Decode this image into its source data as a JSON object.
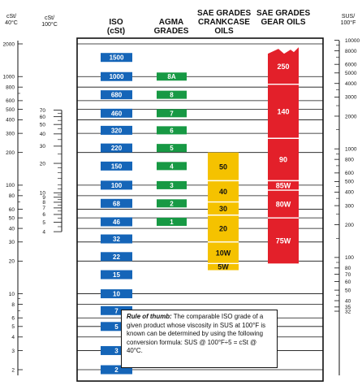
{
  "headers": {
    "cst40": [
      "cSt/",
      "40°C"
    ],
    "cst100": [
      "cSt/",
      "100°C"
    ],
    "iso": [
      "ISO",
      "(cSt)"
    ],
    "agma": [
      "AGMA",
      "GRADES"
    ],
    "crankcase": [
      "SAE GRADES",
      "CRANKCASE",
      "OILS"
    ],
    "gear": [
      "SAE GRADES",
      "GEAR OILS"
    ],
    "sus": [
      "SUS/",
      "100°F"
    ]
  },
  "colors": {
    "iso": "#1565b8",
    "agma": "#179944",
    "crankcase": "#f5c200",
    "gear": "#e3202a",
    "line": "#111111"
  },
  "note": {
    "title": "Rule of thumb:",
    "body": " The comparable ISO grade of a given product whose viscosity in SUS at 100°F is known can be determined by using the following conversion formula: SUS @ 100°F÷5 = cSt @ 40°C."
  },
  "chart_data": {
    "type": "bar",
    "title": "",
    "scale": "log",
    "ylim_cst40": [
      1.8,
      2000
    ],
    "axes": {
      "cst40_ticks": [
        "2000",
        "1000",
        "800",
        "600",
        "500",
        "400",
        "300",
        "200",
        "100",
        "80",
        "60",
        "50",
        "40",
        "30",
        "20",
        "10",
        "8",
        "6",
        "5",
        "4",
        "3",
        "2"
      ],
      "cst100_ticks": [
        "70",
        "60",
        "50",
        "40",
        "30",
        "20",
        "10",
        "9",
        "8",
        "7",
        "6",
        "5",
        "4"
      ],
      "sus_ticks": [
        "10000",
        "8000",
        "6000",
        "5000",
        "4000",
        "3000",
        "2000",
        "1000",
        "800",
        "600",
        "500",
        "400",
        "300",
        "200",
        "100",
        "80",
        "70",
        "60",
        "50",
        "40",
        "35",
        "32"
      ]
    },
    "iso_grades": [
      "1500",
      "1000",
      "680",
      "460",
      "320",
      "220",
      "150",
      "100",
      "68",
      "46",
      "32",
      "22",
      "15",
      "10",
      "7",
      "5",
      "3",
      "2"
    ],
    "agma_grades": [
      "8A",
      "8",
      "7",
      "6",
      "5",
      "4",
      "3",
      "2",
      "1"
    ],
    "agma_cst40": [
      1000,
      680,
      460,
      320,
      220,
      150,
      100,
      68,
      46
    ],
    "crankcase_grades": [
      {
        "label": "50",
        "from": 110,
        "to": 200
      },
      {
        "label": "40",
        "from": 70,
        "to": 110
      },
      {
        "label": "30",
        "from": 53,
        "to": 70
      },
      {
        "label": "20",
        "from": 30,
        "to": 53
      },
      {
        "label": "10W",
        "from": 19,
        "to": 30
      },
      {
        "label": "5W",
        "from": 16.5,
        "to": 19
      }
    ],
    "gear_grades": [
      {
        "label": "250",
        "from": 850,
        "to": 1800
      },
      {
        "label": "140",
        "from": 270,
        "to": 850
      },
      {
        "label": "90",
        "from": 110,
        "to": 270
      },
      {
        "label": "85W",
        "from": 90,
        "to": 110
      },
      {
        "label": "80W",
        "from": 50,
        "to": 90
      },
      {
        "label": "75W",
        "from": 19,
        "to": 50
      }
    ]
  }
}
